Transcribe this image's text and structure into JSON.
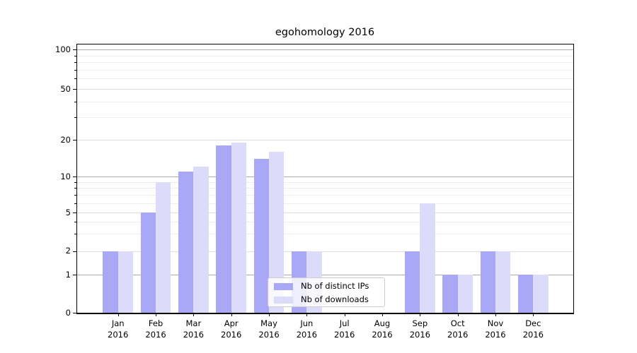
{
  "chart_data": {
    "type": "bar",
    "title": "egohomology 2016",
    "categories": [
      "Jan",
      "Feb",
      "Mar",
      "Apr",
      "May",
      "Jun",
      "Jul",
      "Aug",
      "Sep",
      "Oct",
      "Nov",
      "Dec"
    ],
    "category_year": "2016",
    "series": [
      {
        "name": "Nb of distinct IPs",
        "color": "#a8a8f6",
        "values": [
          2,
          5,
          11,
          18,
          14,
          2,
          0,
          0,
          2,
          1,
          2,
          1
        ]
      },
      {
        "name": "Nb of downloads",
        "color": "#dcdcfa",
        "values": [
          2,
          9,
          12,
          19,
          16,
          2,
          0,
          0,
          6,
          1,
          2,
          1
        ]
      }
    ],
    "y_axis": {
      "scale": "symlog",
      "major_ticks": [
        0,
        1,
        2,
        5,
        10,
        20,
        50,
        100
      ],
      "decade_ticks": [
        1,
        10,
        100
      ],
      "minor_ticks": [
        3,
        4,
        6,
        7,
        8,
        9,
        30,
        40,
        60,
        70,
        80,
        90
      ],
      "ylim": [
        0,
        110
      ]
    },
    "xlabel": "",
    "ylabel": "",
    "grid": "both",
    "legend": {
      "position": "lower center",
      "entries": [
        "Nb of distinct IPs",
        "Nb of downloads"
      ]
    }
  }
}
